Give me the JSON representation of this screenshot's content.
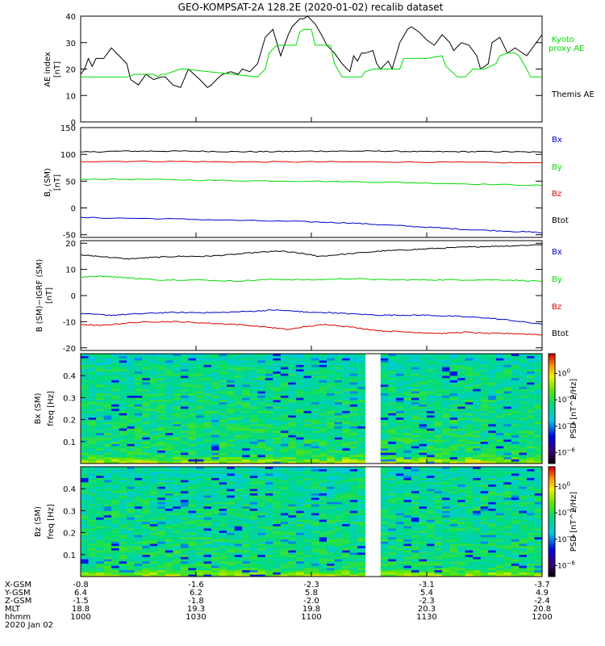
{
  "title": "GEO-KOMPSAT-2A 128.2E (2020-01-02) recalib dataset",
  "colors": {
    "themis": "#000000",
    "kyoto": "#00dd00",
    "bx": "#0000cc",
    "by": "#00dd00",
    "bz": "#dd0000",
    "btot": "#000000"
  },
  "chart_data": [
    {
      "type": "line",
      "panel": "ae",
      "ylabel": "AE index [nT]",
      "ylim": [
        0,
        40
      ],
      "yticks": [
        "0",
        "10",
        "20",
        "30",
        "40"
      ],
      "xlim": [
        600,
        720
      ],
      "series": [
        {
          "name": "Themis AE",
          "color": "#000000",
          "x": [
            600,
            601,
            602,
            603,
            604,
            606,
            608,
            610,
            612,
            613,
            615,
            616,
            617,
            618,
            619,
            621,
            622,
            624,
            626,
            628,
            631,
            633,
            634,
            636,
            637,
            639,
            641,
            642,
            644,
            646,
            648,
            650,
            652,
            654,
            655,
            657,
            658,
            659,
            661,
            663,
            664,
            666,
            668,
            670,
            671,
            672,
            673,
            674,
            676,
            677,
            678,
            680,
            681,
            683,
            685,
            686,
            688,
            690,
            692,
            694,
            696,
            697,
            699,
            701,
            703,
            704,
            706,
            707,
            709,
            711,
            713,
            714,
            716,
            718,
            720
          ],
          "y": [
            18,
            20,
            24,
            21,
            24,
            24,
            28,
            25,
            22,
            16,
            14,
            16,
            18,
            17,
            16,
            17,
            17,
            14,
            13,
            20,
            16,
            13,
            14,
            17,
            18,
            19,
            18,
            20,
            19,
            22,
            32,
            35,
            25,
            33,
            36,
            39,
            39,
            40,
            37,
            32,
            29,
            26,
            22,
            19,
            25,
            23,
            26,
            26,
            27,
            22,
            20,
            23,
            20,
            30,
            35,
            36,
            34,
            31,
            29,
            33,
            30,
            27,
            30,
            29,
            25,
            20,
            22,
            30,
            32,
            26,
            28,
            27,
            25,
            29,
            33
          ]
        },
        {
          "name": "Kyoto proxy AE",
          "color": "#00dd00",
          "x": [
            600,
            612,
            614,
            619,
            620,
            621,
            622,
            626,
            627,
            646,
            648,
            649,
            651,
            652,
            656,
            657,
            658,
            660,
            661,
            665,
            666,
            668,
            673,
            674,
            676,
            678,
            680,
            683,
            684,
            690,
            694,
            695,
            698,
            700,
            702,
            705,
            708,
            709,
            711,
            713,
            714,
            716,
            717,
            720
          ],
          "y": [
            17,
            17,
            18,
            18,
            17,
            18,
            18,
            20,
            20,
            17,
            20,
            26,
            29,
            29,
            29,
            34,
            35,
            35,
            29,
            29,
            22,
            17,
            17,
            19,
            20,
            20,
            20,
            20,
            24,
            24,
            25,
            21,
            17,
            17,
            20,
            20,
            22,
            25,
            26,
            26,
            25,
            20,
            17,
            17
          ]
        }
      ]
    },
    {
      "type": "line",
      "panel": "b",
      "ylabel": "B_r (SM) [nT]",
      "ylim": [
        -55,
        150
      ],
      "yticks": [
        "-50",
        "0",
        "50",
        "100",
        "150"
      ],
      "xlim": [
        600,
        720
      ],
      "series": [
        {
          "name": "Btot",
          "color": "#000000",
          "x": [
            600,
            610,
            620,
            630,
            640,
            650,
            660,
            670,
            680,
            690,
            700,
            710,
            720
          ],
          "y": [
            104,
            106,
            106,
            106,
            105,
            105,
            106,
            106,
            106,
            105,
            105,
            105,
            104
          ]
        },
        {
          "name": "Bz",
          "color": "#dd0000",
          "x": [
            600,
            620,
            640,
            660,
            680,
            700,
            720
          ],
          "y": [
            87,
            87,
            86,
            86,
            86,
            85,
            84
          ]
        },
        {
          "name": "By",
          "color": "#00dd00",
          "x": [
            600,
            620,
            640,
            660,
            680,
            700,
            720
          ],
          "y": [
            54,
            53,
            51,
            50,
            48,
            45,
            42
          ]
        },
        {
          "name": "Bx",
          "color": "#0000cc",
          "x": [
            600,
            620,
            640,
            660,
            670,
            680,
            690,
            700,
            710,
            720
          ],
          "y": [
            -18,
            -20,
            -23,
            -26,
            -28,
            -32,
            -36,
            -40,
            -43,
            -46
          ]
        }
      ]
    },
    {
      "type": "line",
      "panel": "bigrf",
      "ylabel": "B (SM)-IGRF (SM) [nT]",
      "ylim": [
        -21,
        21
      ],
      "yticks": [
        "-20",
        "-10",
        "0",
        "10",
        "20"
      ],
      "xlim": [
        600,
        720
      ],
      "series": [
        {
          "name": "Btot",
          "color": "#000000",
          "x": [
            600,
            605,
            612,
            618,
            625,
            632,
            638,
            646,
            652,
            658,
            662,
            670,
            678,
            685,
            692,
            700,
            706,
            712,
            720
          ],
          "y": [
            15.5,
            15,
            14,
            14.5,
            15,
            15,
            15.5,
            16.5,
            17,
            16,
            15,
            16,
            17,
            17.5,
            18,
            18.5,
            18.8,
            19,
            19.5
          ]
        },
        {
          "name": "By",
          "color": "#00dd00",
          "x": [
            600,
            605,
            610,
            615,
            620,
            630,
            640,
            650,
            660,
            670,
            680,
            690,
            700,
            710,
            720
          ],
          "y": [
            7,
            7.5,
            7,
            6.5,
            6,
            6,
            5.5,
            6.2,
            6,
            6.5,
            6,
            6,
            6,
            6,
            5.5
          ]
        },
        {
          "name": "Bx",
          "color": "#0000cc",
          "x": [
            600,
            608,
            615,
            622,
            630,
            636,
            645,
            650,
            656,
            660,
            665,
            670,
            678,
            685,
            690,
            698,
            705,
            712,
            720
          ],
          "y": [
            -7,
            -7.5,
            -7,
            -6.5,
            -6.5,
            -6.5,
            -6,
            -5.5,
            -6,
            -6.5,
            -6.5,
            -7,
            -7.5,
            -7.5,
            -7.5,
            -8,
            -8.5,
            -9.5,
            -11
          ]
        },
        {
          "name": "Bz",
          "color": "#dd0000",
          "x": [
            600,
            605,
            612,
            618,
            625,
            632,
            640,
            648,
            654,
            658,
            664,
            670,
            678,
            686,
            694,
            700,
            706,
            712,
            720
          ],
          "y": [
            -11,
            -11.5,
            -10.5,
            -10,
            -10,
            -10.5,
            -11,
            -12,
            -13,
            -12,
            -11,
            -12,
            -13.5,
            -14,
            -14.5,
            -14,
            -14.5,
            -14.5,
            -15
          ]
        }
      ]
    },
    {
      "type": "heatmap",
      "panel": "spec_bx",
      "ylabel": "Bx (SM) freq [Hz]",
      "yticks": [
        "0.1",
        "0.2",
        "0.3",
        "0.4"
      ],
      "ylim": [
        0,
        0.5
      ],
      "xlim": [
        600,
        720
      ],
      "gap": [
        [
          673,
          678
        ]
      ],
      "colorbar_label": "PSD [nT^2/Hz]",
      "colorbar_ticks": [
        "10^0",
        "10^-2",
        "10^-4",
        "10^-6"
      ]
    },
    {
      "type": "heatmap",
      "panel": "spec_bz",
      "ylabel": "Bz (SM) freq [Hz]",
      "yticks": [
        "0.1",
        "0.2",
        "0.3",
        "0.4"
      ],
      "ylim": [
        0,
        0.5
      ],
      "xlim": [
        600,
        720
      ],
      "gap": [
        [
          673,
          678
        ]
      ],
      "colorbar_label": "PSD [nT^2/Hz]",
      "colorbar_ticks": [
        "10^0",
        "10^-2",
        "10^-4",
        "10^-6"
      ]
    }
  ],
  "legend_ae": {
    "kyoto_1": "Kyoto",
    "kyoto_2": "proxy AE",
    "themis": "Themis AE"
  },
  "legend_b": [
    "Bx",
    "By",
    "Bz",
    "Btot"
  ],
  "legend_bigrf": [
    "Bx",
    "By",
    "Bz",
    "Btot"
  ],
  "ephemeris": {
    "labels": [
      "X-GSM",
      "Y-GSM",
      "Z-GSM",
      "MLT",
      "hhmm",
      "2020 Jan 02"
    ],
    "columns": [
      {
        "xgsm": "-0.8",
        "ygsm": "6.4",
        "zgsm": "-1.5",
        "mlt": "18.8",
        "hhmm": "1000"
      },
      {
        "xgsm": "-1.6",
        "ygsm": "6.2",
        "zgsm": "-1.8",
        "mlt": "19.3",
        "hhmm": "1030"
      },
      {
        "xgsm": "-2.3",
        "ygsm": "5.8",
        "zgsm": "-2.0",
        "mlt": "19.8",
        "hhmm": "1100"
      },
      {
        "xgsm": "-3.1",
        "ygsm": "5.4",
        "zgsm": "-2.3",
        "mlt": "20.3",
        "hhmm": "1130"
      },
      {
        "xgsm": "-3.7",
        "ygsm": "4.9",
        "zgsm": "-2.4",
        "mlt": "20.8",
        "hhmm": "1200"
      }
    ]
  }
}
